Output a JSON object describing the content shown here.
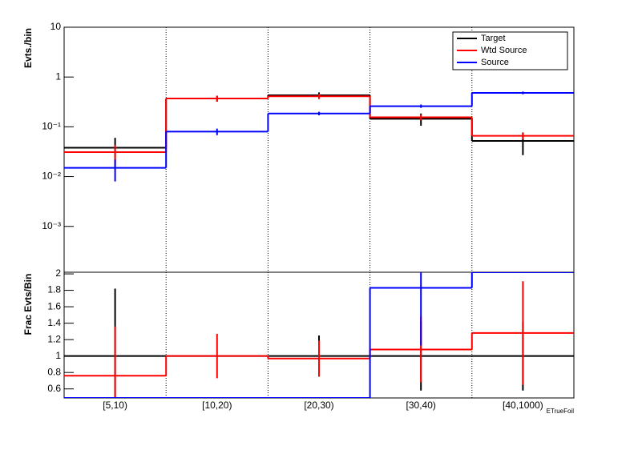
{
  "chart_data": [
    {
      "type": "hist",
      "log_y": true,
      "ylabel": "Evts./bin",
      "ylim": [
        0.00012,
        10
      ],
      "yticks": [
        {
          "value": 10,
          "label": "10"
        },
        {
          "value": 1,
          "label": "1"
        },
        {
          "value": 0.1,
          "label": "10⁻¹"
        },
        {
          "value": 0.01,
          "label": "10⁻²"
        },
        {
          "value": 0.001,
          "label": "10⁻³"
        }
      ],
      "legend": "top-right",
      "series": [
        {
          "name": "Target",
          "color": "#000000",
          "values": [
            0.038,
            0.37,
            0.43,
            0.145,
            0.052
          ],
          "errors": [
            0.022,
            0.05,
            0.06,
            0.04,
            0.025
          ]
        },
        {
          "name": "Wtd Source",
          "color": "#ff0000",
          "values": [
            0.031,
            0.37,
            0.41,
            0.155,
            0.066
          ],
          "errors": [
            0.012,
            0.05,
            0.05,
            0.02,
            0.01
          ]
        },
        {
          "name": "Source",
          "color": "#0000ff",
          "values": [
            0.015,
            0.08,
            0.185,
            0.26,
            0.48
          ],
          "errors": [
            0.007,
            0.012,
            0.015,
            0.02,
            0.03
          ]
        }
      ]
    },
    {
      "type": "hist",
      "log_y": false,
      "ylabel": "Frac Evts/Bin",
      "xlabel": "ETrueFoil",
      "categories": [
        "[5,10)",
        "[10,20)",
        "[20,30)",
        "[30,40)",
        "[40,1000)"
      ],
      "ylim": [
        0.49,
        2.02
      ],
      "yticks": [
        {
          "value": 0.6,
          "label": "0.6"
        },
        {
          "value": 0.8,
          "label": "0.8"
        },
        1,
        1.2,
        1.4,
        1.6,
        1.8,
        2
      ],
      "series": [
        {
          "color": "#000000",
          "values": [
            1,
            1,
            1,
            1,
            1
          ],
          "errors": [
            0.82,
            null,
            0.25,
            0.42,
            0.42
          ]
        },
        {
          "color": "#ff0000",
          "values": [
            0.76,
            1.0,
            0.97,
            1.08,
            1.28
          ],
          "errors": [
            0.6,
            0.27,
            0.22,
            0.4,
            0.63
          ]
        },
        {
          "color": "#0000ff",
          "values": [
            0.49,
            0.49,
            0.49,
            1.83,
            2.03
          ],
          "errors": [
            null,
            null,
            null,
            0.7,
            null
          ]
        }
      ]
    }
  ]
}
